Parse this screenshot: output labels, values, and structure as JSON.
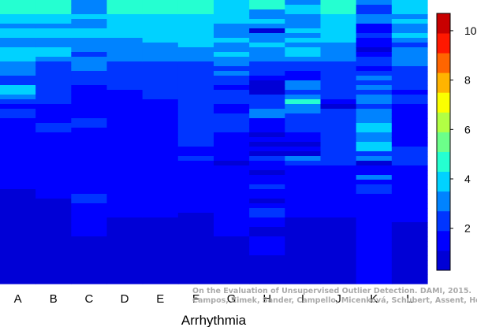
{
  "chart_data": {
    "type": "heatmap",
    "xlabel": "Arrhythmia",
    "ylabel": "",
    "categories": [
      "A",
      "B",
      "C",
      "D",
      "E",
      "F",
      "G",
      "H",
      "I",
      "J",
      "K",
      "L"
    ],
    "rows": 60,
    "colorbar": {
      "min": 0.3,
      "max": 10.7,
      "ticks": [
        2,
        4,
        6,
        8,
        10
      ],
      "levels": [
        0.3,
        1.1,
        1.9,
        2.7,
        3.5,
        4.3,
        5.1,
        5.9,
        6.7,
        7.5,
        8.3,
        9.1,
        9.9,
        10.7
      ],
      "colors": [
        "#00007F",
        "#0000D6",
        "#0000FF",
        "#0035FF",
        "#0083FF",
        "#00D2FF",
        "#25FFD1",
        "#6CFF8A",
        "#B2FF44",
        "#FBFF00",
        "#FFB400",
        "#FF6500",
        "#FF1800",
        "#C80000",
        "#7F0000"
      ]
    },
    "columns": [
      [
        6,
        6,
        6,
        5,
        5,
        4,
        5,
        5,
        4,
        4,
        5,
        5,
        5,
        4,
        4,
        4,
        3,
        3,
        5,
        5,
        4,
        3,
        2,
        3,
        3,
        2,
        2,
        2,
        2,
        2,
        2,
        2,
        2,
        2,
        2,
        2,
        2,
        2,
        2,
        2,
        1,
        1,
        1,
        1,
        1,
        1,
        1,
        1,
        1,
        1,
        1,
        1,
        1,
        1,
        1,
        1,
        1,
        1,
        1,
        1
      ],
      [
        6,
        6,
        6,
        5,
        5,
        4,
        5,
        5,
        4,
        4,
        5,
        5,
        4,
        3,
        3,
        3,
        3,
        3,
        3,
        3,
        3,
        3,
        2,
        2,
        2,
        2,
        3,
        3,
        2,
        2,
        2,
        2,
        2,
        2,
        2,
        2,
        2,
        2,
        2,
        2,
        2,
        2,
        1,
        1,
        1,
        1,
        1,
        1,
        1,
        1,
        1,
        1,
        1,
        1,
        1,
        1,
        1,
        1,
        1,
        1
      ],
      [
        4,
        4,
        4,
        5,
        4,
        4,
        5,
        5,
        4,
        4,
        4,
        3,
        4,
        4,
        4,
        3,
        3,
        3,
        2,
        2,
        2,
        2,
        2,
        2,
        2,
        3,
        3,
        2,
        2,
        2,
        2,
        2,
        2,
        2,
        2,
        2,
        2,
        2,
        2,
        2,
        2,
        3,
        3,
        2,
        2,
        2,
        2,
        2,
        2,
        2,
        1,
        1,
        1,
        1,
        1,
        1,
        1,
        1,
        1,
        1
      ],
      [
        6,
        6,
        6,
        5,
        5,
        5,
        5,
        5,
        4,
        4,
        4,
        4,
        4,
        3,
        3,
        3,
        3,
        3,
        3,
        2,
        2,
        2,
        2,
        2,
        2,
        2,
        2,
        2,
        2,
        2,
        2,
        2,
        2,
        2,
        2,
        2,
        2,
        2,
        2,
        2,
        2,
        2,
        2,
        2,
        2,
        2,
        1,
        1,
        1,
        1,
        1,
        1,
        1,
        1,
        1,
        1,
        1,
        1,
        1,
        1
      ],
      [
        6,
        6,
        6,
        5,
        5,
        5,
        5,
        5,
        5,
        4,
        4,
        4,
        4,
        3,
        3,
        3,
        3,
        3,
        3,
        3,
        3,
        2,
        2,
        2,
        2,
        2,
        2,
        2,
        2,
        2,
        2,
        2,
        2,
        2,
        2,
        2,
        2,
        2,
        2,
        2,
        2,
        2,
        2,
        2,
        2,
        2,
        1,
        1,
        1,
        1,
        1,
        1,
        1,
        1,
        1,
        1,
        1,
        1,
        1,
        1
      ],
      [
        6,
        6,
        6,
        5,
        5,
        5,
        5,
        5,
        5,
        5,
        4,
        4,
        4,
        3,
        3,
        3,
        3,
        3,
        3,
        3,
        3,
        3,
        3,
        3,
        3,
        3,
        3,
        3,
        3,
        3,
        3,
        2,
        2,
        3,
        2,
        2,
        2,
        2,
        2,
        2,
        2,
        2,
        2,
        2,
        2,
        1,
        1,
        1,
        1,
        1,
        1,
        1,
        1,
        1,
        1,
        1,
        1,
        1,
        1,
        1
      ],
      [
        5,
        5,
        5,
        5,
        5,
        4,
        4,
        4,
        5,
        4,
        4,
        5,
        4,
        4,
        3,
        4,
        3,
        3,
        2,
        3,
        3,
        3,
        2,
        2,
        3,
        3,
        3,
        3,
        2,
        2,
        2,
        2,
        2,
        2,
        1,
        2,
        2,
        2,
        2,
        2,
        2,
        2,
        2,
        2,
        2,
        2,
        2,
        2,
        2,
        2,
        1,
        1,
        1,
        1,
        1,
        1,
        1,
        1,
        1,
        1
      ],
      [
        6,
        6,
        4,
        4,
        5,
        4,
        1,
        4,
        4,
        5,
        4,
        4,
        4,
        3,
        3,
        3,
        2,
        1,
        1,
        1,
        3,
        3,
        3,
        4,
        4,
        2,
        2,
        2,
        1,
        2,
        1,
        2,
        1,
        3,
        2,
        2,
        1,
        2,
        2,
        3,
        2,
        2,
        1,
        2,
        3,
        3,
        2,
        2,
        1,
        1,
        2,
        2,
        2,
        2,
        1,
        1,
        1,
        1,
        1,
        1
      ],
      [
        4,
        5,
        5,
        4,
        4,
        4,
        5,
        4,
        5,
        4,
        5,
        5,
        4,
        3,
        3,
        2,
        2,
        4,
        4,
        3,
        4,
        6,
        4,
        4,
        3,
        3,
        3,
        3,
        2,
        2,
        1,
        2,
        1,
        4,
        3,
        2,
        2,
        2,
        2,
        2,
        2,
        2,
        2,
        2,
        2,
        2,
        1,
        1,
        1,
        1,
        1,
        1,
        1,
        1,
        1,
        1,
        1,
        1,
        1,
        1
      ],
      [
        6,
        6,
        6,
        5,
        5,
        5,
        5,
        5,
        5,
        4,
        4,
        4,
        4,
        3,
        3,
        3,
        3,
        3,
        3,
        3,
        3,
        2,
        1,
        3,
        3,
        3,
        3,
        3,
        3,
        3,
        3,
        3,
        3,
        3,
        3,
        2,
        2,
        2,
        2,
        2,
        2,
        2,
        2,
        2,
        2,
        2,
        1,
        1,
        1,
        1,
        1,
        1,
        1,
        1,
        1,
        1,
        1,
        1,
        1,
        1
      ],
      [
        4,
        3,
        3,
        4,
        4,
        2,
        2,
        3,
        2,
        2,
        1,
        2,
        3,
        3,
        2,
        3,
        4,
        3,
        4,
        3,
        4,
        4,
        3,
        4,
        4,
        4,
        5,
        5,
        4,
        4,
        5,
        5,
        3,
        4,
        1,
        2,
        2,
        4,
        2,
        3,
        3,
        2,
        2,
        2,
        2,
        2,
        2,
        2,
        2,
        2,
        2,
        2,
        2,
        2,
        2,
        2,
        2,
        2,
        2,
        2
      ],
      [
        5,
        5,
        5,
        4,
        5,
        4,
        4,
        5,
        4,
        3,
        4,
        4,
        4,
        4,
        3,
        3,
        3,
        3,
        3,
        2,
        3,
        3,
        2,
        2,
        2,
        2,
        2,
        2,
        2,
        2,
        2,
        3,
        3,
        3,
        3,
        2,
        2,
        2,
        2,
        2,
        2,
        2,
        2,
        2,
        2,
        2,
        2,
        1,
        1,
        1,
        1,
        1,
        1,
        1,
        1,
        1,
        1,
        1,
        1,
        1
      ]
    ]
  },
  "watermark": {
    "line1": "On the Evaluation of Unsupervised Outlier Detection. DAMI, 2015.",
    "line2": "Campos, Zimek, Sander, Campello, Micenková, Schubert, Assent, Houle"
  }
}
